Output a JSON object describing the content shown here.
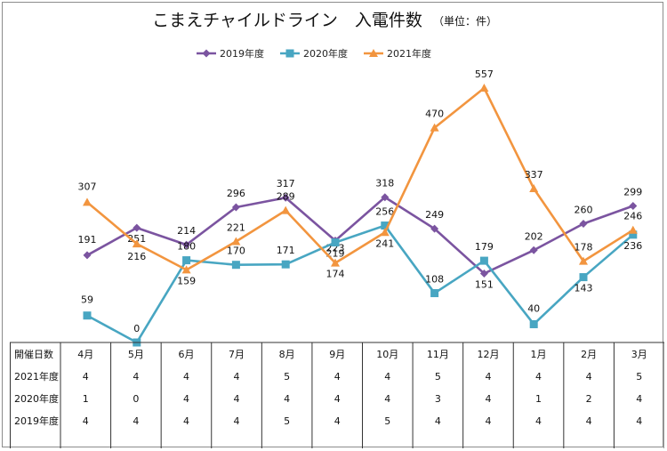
{
  "chart_data": {
    "type": "line",
    "title": "こまえチャイルドライン　入電件数",
    "subtitle": "（単位：件）",
    "categories": [
      "4月",
      "5月",
      "6月",
      "7月",
      "8月",
      "9月",
      "10月",
      "11月",
      "12月",
      "1月",
      "2月",
      "3月"
    ],
    "series": [
      {
        "name": "2019年度",
        "color": "#7b54a0",
        "marker": "diamond",
        "values": [
          191,
          251,
          214,
          296,
          317,
          223,
          318,
          249,
          151,
          202,
          260,
          299
        ]
      },
      {
        "name": "2020年度",
        "color": "#48a6c2",
        "marker": "square",
        "values": [
          59,
          0,
          180,
          170,
          171,
          219,
          256,
          108,
          179,
          40,
          143,
          236
        ]
      },
      {
        "name": "2021年度",
        "color": "#f2953f",
        "marker": "triangle",
        "values": [
          307,
          216,
          159,
          221,
          289,
          174,
          241,
          470,
          557,
          337,
          178,
          246
        ]
      }
    ],
    "ylim": [
      0,
      557
    ],
    "legend_position": "top",
    "grid": false,
    "table": {
      "header_label": "開催日数",
      "rows": [
        {
          "label": "2021年度",
          "values": [
            "4",
            "4",
            "4",
            "4",
            "5",
            "4",
            "4",
            "5",
            "4",
            "4",
            "4",
            "5"
          ]
        },
        {
          "label": "2020年度",
          "values": [
            "1",
            "0",
            "4",
            "4",
            "4",
            "4",
            "4",
            "3",
            "4",
            "1",
            "2",
            "4"
          ]
        },
        {
          "label": "2019年度",
          "values": [
            "4",
            "4",
            "4",
            "4",
            "5",
            "4",
            "5",
            "4",
            "4",
            "4",
            "4",
            "4"
          ]
        }
      ]
    }
  }
}
